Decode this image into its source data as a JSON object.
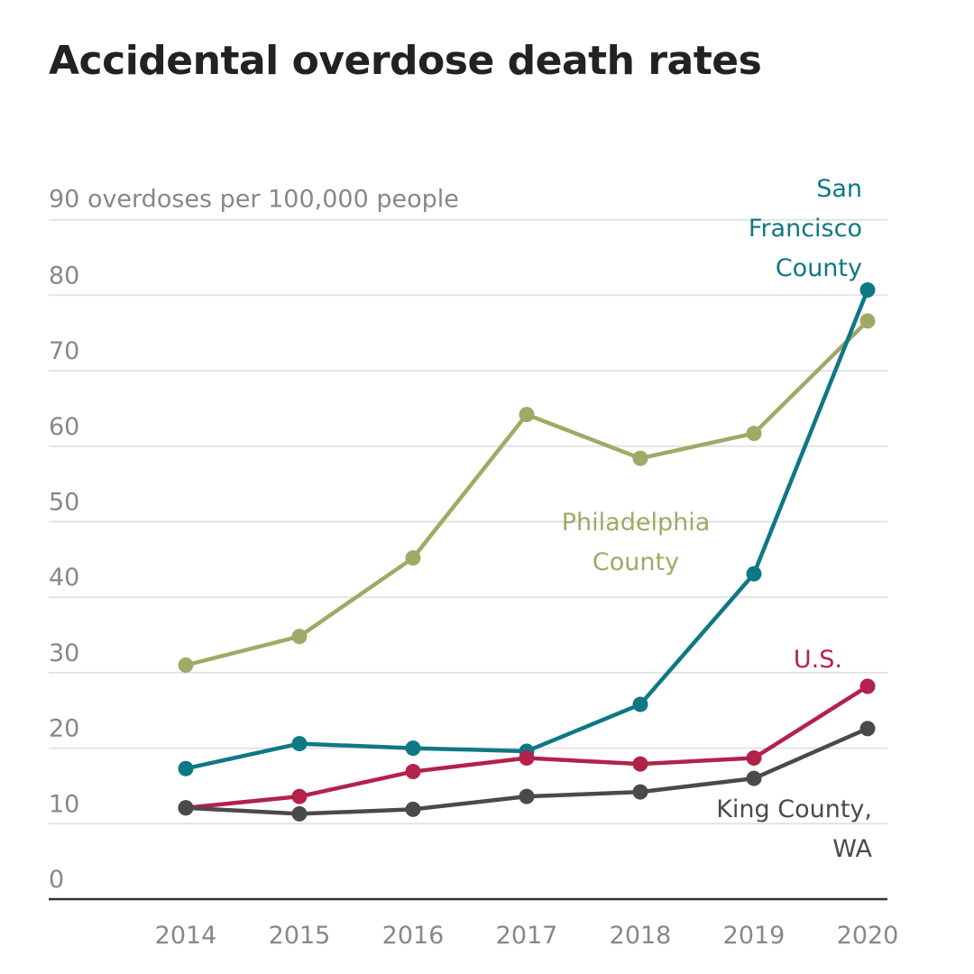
{
  "chart_data": {
    "type": "line",
    "title": "Accidental overdose death rates",
    "ylabel": "90 overdoses per 100,000 people",
    "xlabel": "",
    "ylim": [
      0,
      90
    ],
    "yticks": [
      0,
      10,
      20,
      30,
      40,
      50,
      60,
      70,
      80
    ],
    "x": [
      "2014",
      "2015",
      "2016",
      "2017",
      "2018",
      "2019",
      "2020"
    ],
    "grid": true,
    "series": [
      {
        "name": "Philadelphia County",
        "label_lines": [
          "Philadelphia",
          "County"
        ],
        "color": "#a1a966",
        "values": [
          31.0,
          34.8,
          45.2,
          64.2,
          58.4,
          61.7,
          76.6
        ]
      },
      {
        "name": "San Francisco County",
        "label_lines": [
          "San",
          "Francisco",
          "County"
        ],
        "color": "#0e7884",
        "values": [
          17.3,
          20.6,
          20.0,
          19.6,
          25.8,
          43.1,
          80.7
        ]
      },
      {
        "name": "U.S.",
        "label_lines": [
          "U.S."
        ],
        "color": "#b2224b",
        "values": [
          12.1,
          13.6,
          16.9,
          18.7,
          17.9,
          18.7,
          28.2
        ]
      },
      {
        "name": "King County, WA",
        "label_lines": [
          "King County,",
          "WA"
        ],
        "color": "#4a4a4a",
        "values": [
          12.1,
          11.3,
          11.9,
          13.6,
          14.2,
          16.0,
          22.6
        ]
      }
    ]
  }
}
